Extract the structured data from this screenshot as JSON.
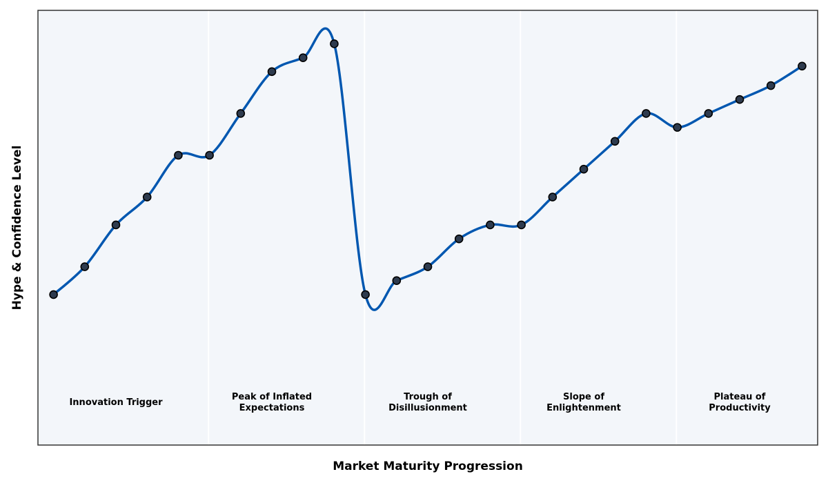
{
  "chart_data": {
    "type": "line",
    "title": "",
    "xlabel": "Market Maturity Progression",
    "ylabel": "Hype & Confidence Level",
    "xlim": [
      -0.5,
      24.5
    ],
    "ylim": [
      -14,
      142
    ],
    "grid": false,
    "legend": "none",
    "colors": {
      "line": "#0057b0",
      "marker_fill": "#2e3b4e",
      "marker_edge": "#000000",
      "plot_bg": "#f3f6fa",
      "frame": "#333333",
      "divider": "#ffffff"
    },
    "x": [
      0,
      1,
      2,
      3,
      4,
      5,
      6,
      7,
      8,
      9,
      10,
      11,
      12,
      13,
      14,
      15,
      16,
      17,
      18,
      19,
      20,
      21,
      22,
      23,
      24
    ],
    "values": [
      40,
      50,
      65,
      75,
      90,
      90,
      105,
      120,
      125,
      130,
      40,
      45,
      50,
      60,
      65,
      65,
      75,
      85,
      95,
      105,
      100,
      105,
      110,
      115,
      122
    ],
    "phase_boundaries": [
      5,
      10,
      15,
      20
    ],
    "phases": [
      {
        "lines": [
          "Innovation Trigger"
        ],
        "x": 2
      },
      {
        "lines": [
          "Peak of Inflated",
          "Expectations"
        ],
        "x": 7
      },
      {
        "lines": [
          "Trough of",
          "Disillusionment"
        ],
        "x": 12
      },
      {
        "lines": [
          "Slope of",
          "Enlightenment"
        ],
        "x": 17
      },
      {
        "lines": [
          "Plateau of",
          "Productivity"
        ],
        "x": 22
      }
    ]
  }
}
